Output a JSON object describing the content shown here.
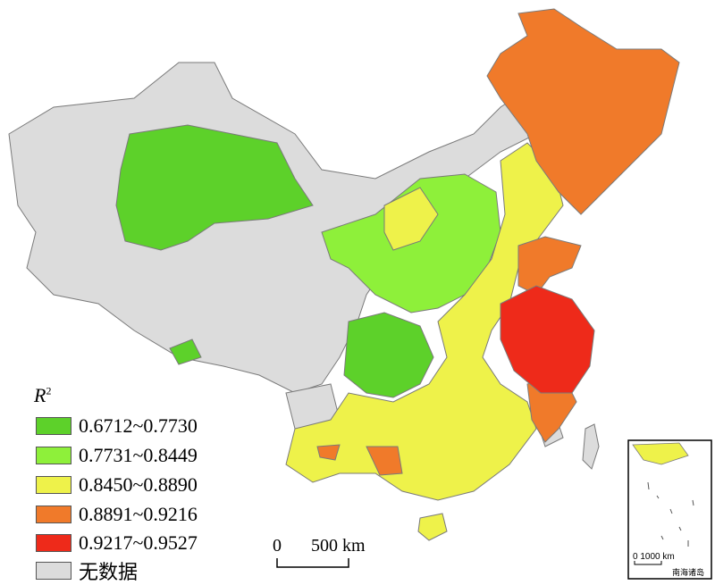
{
  "legend": {
    "title": "R",
    "title_sup": "2",
    "items": [
      {
        "label": "0.6712~0.7730",
        "color": "#5dd12a"
      },
      {
        "label": "0.7731~0.8449",
        "color": "#8ef03a"
      },
      {
        "label": "0.8450~0.8890",
        "color": "#eef24a"
      },
      {
        "label": "0.8891~0.9216",
        "color": "#f07a2a"
      },
      {
        "label": "0.9217~0.9527",
        "color": "#ee2a1a"
      },
      {
        "label": "无数据",
        "color": "#dcdcdc"
      }
    ]
  },
  "scale_bar": {
    "zero": "0",
    "distance": "500 km"
  },
  "inset": {
    "scale": "0 1000 km",
    "caption": "南海诸岛"
  }
}
